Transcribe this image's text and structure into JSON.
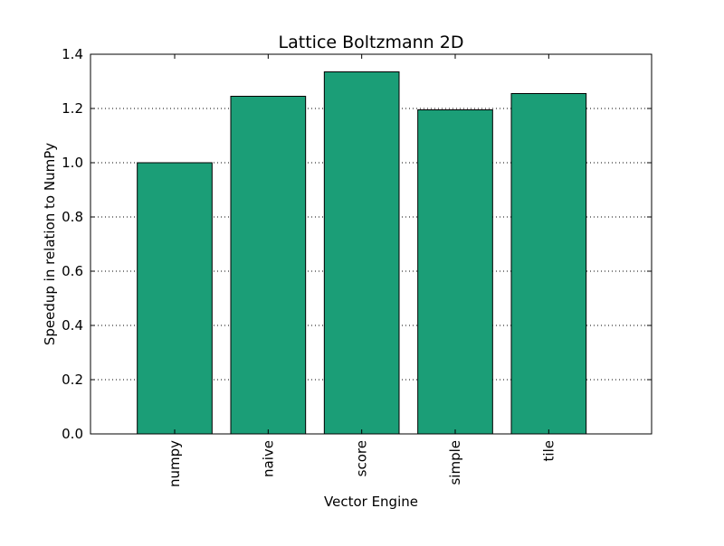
{
  "chart_data": {
    "type": "bar",
    "title": "Lattice Boltzmann 2D",
    "xlabel": "Vector Engine",
    "ylabel": "Speedup in relation to NumPy",
    "categories": [
      "numpy",
      "naive",
      "score",
      "simple",
      "tile"
    ],
    "values": [
      1.0,
      1.245,
      1.335,
      1.195,
      1.255
    ],
    "ylim": [
      0,
      1.4
    ],
    "yticks": [
      0.0,
      0.2,
      0.4,
      0.6,
      0.8,
      1.0,
      1.2,
      1.4
    ],
    "ytick_labels": [
      "0.0",
      "0.2",
      "0.4",
      "0.6",
      "0.8",
      "1.0",
      "1.2",
      "1.4"
    ],
    "grid": "y-dotted",
    "legend": "none",
    "bar_color": "#1b9e77",
    "edge_color": "#000000"
  }
}
